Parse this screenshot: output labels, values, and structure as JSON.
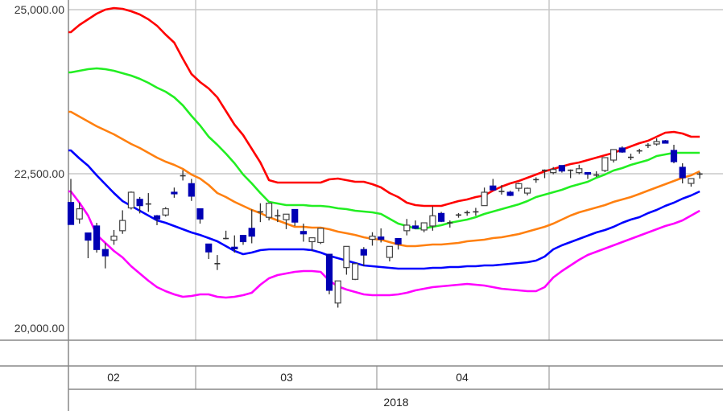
{
  "chart_data": {
    "type": "candlestick",
    "title": "",
    "xlabel": "",
    "ylabel": "",
    "ylim": [
      20000,
      25000
    ],
    "yticks": [
      "25,000.00",
      "22,500.00",
      "20,000.00"
    ],
    "ytick_values": [
      25000,
      22500,
      20000
    ],
    "grid": true,
    "year_label": "2018",
    "months": [
      {
        "label": "02",
        "first_index": 0
      },
      {
        "label": "03",
        "first_index": 15
      },
      {
        "label": "04",
        "first_index": 36
      },
      {
        "label": "",
        "first_index": 56
      }
    ],
    "colors": {
      "up_fill": "#ffffff",
      "down_fill": "#0000b4",
      "wick": "#333333",
      "band_colors": [
        "#ff0000",
        "#22ee22",
        "#ff8010",
        "#0000ff",
        "#ff00ff"
      ]
    },
    "candles": [
      [
        22062,
        22421,
        21727,
        21727
      ],
      [
        21811,
        22062,
        21740,
        21966
      ],
      [
        21597,
        21597,
        21213,
        21488
      ],
      [
        21704,
        21752,
        21298,
        21345
      ],
      [
        21345,
        21443,
        21058,
        21249
      ],
      [
        21488,
        21643,
        21417,
        21549
      ],
      [
        21632,
        21943,
        21584,
        21788
      ],
      [
        21979,
        22230,
        21955,
        22218
      ],
      [
        22110,
        22146,
        21895,
        22014
      ],
      [
        22039,
        22205,
        21919,
        22028
      ],
      [
        21859,
        21871,
        21716,
        21811
      ],
      [
        21871,
        21991,
        21847,
        21966
      ],
      [
        22218,
        22289,
        22134,
        22194
      ],
      [
        22469,
        22553,
        22397,
        22457
      ],
      [
        22349,
        22421,
        22086,
        22158
      ],
      [
        21966,
        21966,
        21740,
        21811
      ],
      [
        21429,
        21429,
        21201,
        21309
      ],
      [
        21130,
        21261,
        21033,
        21119
      ],
      [
        21513,
        21632,
        21501,
        21501
      ],
      [
        21381,
        21561,
        21298,
        21356
      ],
      [
        21561,
        21561,
        21417,
        21465
      ],
      [
        21668,
        21955,
        21440,
        21549
      ],
      [
        21919,
        22050,
        21763,
        21907
      ],
      [
        21836,
        22050,
        21788,
        22050
      ],
      [
        21859,
        21955,
        21763,
        21847
      ],
      [
        21800,
        21884,
        21656,
        21884
      ],
      [
        21955,
        21955,
        21704,
        21763
      ],
      [
        21620,
        21740,
        21465,
        21584
      ],
      [
        21465,
        21524,
        21321,
        21524
      ],
      [
        21453,
        21668,
        21429,
        21668
      ],
      [
        21273,
        21273,
        20663,
        20724
      ],
      [
        20530,
        20867,
        20460,
        20867
      ],
      [
        21070,
        21393,
        20962,
        21393
      ],
      [
        20891,
        21129,
        20879,
        21129
      ],
      [
        21345,
        21382,
        21093,
        21261
      ],
      [
        21501,
        21609,
        21404,
        21549
      ],
      [
        21536,
        21668,
        21453,
        21501
      ],
      [
        21225,
        21393,
        21165,
        21393
      ],
      [
        21513,
        21513,
        21345,
        21429
      ],
      [
        21632,
        21811,
        21561,
        21716
      ],
      [
        21704,
        21788,
        21656,
        21668
      ],
      [
        21643,
        21752,
        21609,
        21752
      ],
      [
        21704,
        22003,
        21632,
        21859
      ],
      [
        21895,
        21919,
        21763,
        21775
      ],
      [
        21752,
        21788,
        21680,
        21740
      ],
      [
        21871,
        21900,
        21830,
        21859
      ],
      [
        21907,
        21940,
        21860,
        21895
      ],
      [
        21919,
        21980,
        21860,
        21907
      ],
      [
        22014,
        22289,
        22014,
        22218
      ],
      [
        22313,
        22421,
        22253,
        22253
      ],
      [
        22230,
        22327,
        22182,
        22218
      ],
      [
        22218,
        22242,
        22158,
        22170
      ],
      [
        22278,
        22362,
        22230,
        22349
      ],
      [
        22205,
        22289,
        22170,
        22278
      ],
      [
        22410,
        22445,
        22362,
        22398
      ],
      [
        22553,
        22565,
        22433,
        22541
      ],
      [
        22517,
        22602,
        22492,
        22565
      ],
      [
        22625,
        22625,
        22517,
        22542
      ],
      [
        22553,
        22565,
        22433,
        22541
      ],
      [
        22517,
        22637,
        22492,
        22576
      ],
      [
        22517,
        22517,
        22421,
        22493
      ],
      [
        22480,
        22537,
        22451,
        22470
      ],
      [
        22549,
        22745,
        22524,
        22745
      ],
      [
        22708,
        22868,
        22671,
        22868
      ],
      [
        22892,
        22917,
        22819,
        22831
      ],
      [
        22750,
        22806,
        22708,
        22740
      ],
      [
        22848,
        22880,
        22806,
        22838
      ],
      [
        22934,
        22966,
        22892,
        22924
      ],
      [
        22953,
        23039,
        22929,
        22990
      ],
      [
        23002,
        23015,
        22960,
        22966
      ],
      [
        22855,
        22941,
        22659,
        22684
      ],
      [
        22598,
        22659,
        22353,
        22439
      ],
      [
        22353,
        22426,
        22304,
        22426
      ],
      [
        22495,
        22524,
        22426,
        22485
      ]
    ],
    "candle_fields": [
      "open",
      "high",
      "low",
      "close"
    ],
    "series": [
      {
        "values": [
          24657,
          24767,
          24853,
          24939,
          25000,
          25024,
          25012,
          24975,
          24926,
          24853,
          24755,
          24620,
          24498,
          24252,
          24020,
          23897,
          23799,
          23664,
          23456,
          23247,
          23088,
          22880,
          22671,
          22402,
          22365,
          22365,
          22365,
          22365,
          22365,
          22365,
          22414,
          22426,
          22402,
          22377,
          22377,
          22341,
          22292,
          22206,
          22145,
          22059,
          22022,
          22010,
          22010,
          22010,
          22047,
          22083,
          22108,
          22145,
          22169,
          22243,
          22304,
          22353,
          22390,
          22439,
          22488,
          22537,
          22574,
          22610,
          22647,
          22671,
          22708,
          22745,
          22782,
          22819,
          22868,
          22917,
          22966,
          23002,
          23064,
          23125,
          23137,
          23113,
          23064,
          23064
        ]
      },
      {
        "values": [
          24044,
          24069,
          24093,
          24105,
          24093,
          24069,
          24032,
          23995,
          23946,
          23885,
          23811,
          23750,
          23664,
          23542,
          23382,
          23235,
          23064,
          22941,
          22806,
          22659,
          22488,
          22353,
          22206,
          22071,
          22047,
          22022,
          22022,
          22022,
          22010,
          22010,
          21998,
          21973,
          21961,
          21936,
          21924,
          21912,
          21887,
          21814,
          21740,
          21704,
          21667,
          21667,
          21691,
          21716,
          21752,
          21777,
          21801,
          21838,
          21887,
          21924,
          21961,
          21998,
          22034,
          22083,
          22145,
          22181,
          22218,
          22255,
          22304,
          22341,
          22377,
          22439,
          22488,
          22549,
          22586,
          22635,
          22671,
          22708,
          22770,
          22794,
          22819,
          22819,
          22819,
          22819
        ]
      },
      {
        "values": [
          23444,
          23370,
          23297,
          23223,
          23162,
          23100,
          23027,
          22953,
          22892,
          22819,
          22745,
          22684,
          22635,
          22573,
          22488,
          22426,
          22328,
          22206,
          22145,
          22071,
          22010,
          21948,
          21899,
          21838,
          21789,
          21740,
          21691,
          21691,
          21679,
          21679,
          21654,
          21618,
          21593,
          21568,
          21532,
          21507,
          21495,
          21458,
          21421,
          21397,
          21397,
          21409,
          21421,
          21421,
          21434,
          21446,
          21470,
          21483,
          21495,
          21519,
          21532,
          21556,
          21581,
          21618,
          21654,
          21691,
          21740,
          21801,
          21863,
          21912,
          21948,
          21985,
          22022,
          22071,
          22108,
          22145,
          22193,
          22243,
          22292,
          22341,
          22390,
          22439,
          22475,
          22537
        ]
      },
      {
        "values": [
          22855,
          22733,
          22622,
          22475,
          22341,
          22206,
          22083,
          22010,
          21936,
          21863,
          21789,
          21752,
          21703,
          21654,
          21605,
          21568,
          21519,
          21470,
          21397,
          21323,
          21274,
          21299,
          21336,
          21348,
          21348,
          21348,
          21348,
          21348,
          21336,
          21299,
          21250,
          21213,
          21176,
          21140,
          21103,
          21091,
          21078,
          21066,
          21054,
          21054,
          21054,
          21054,
          21066,
          21066,
          21078,
          21078,
          21091,
          21091,
          21103,
          21103,
          21115,
          21127,
          21140,
          21152,
          21176,
          21238,
          21348,
          21409,
          21458,
          21507,
          21556,
          21605,
          21642,
          21691,
          21752,
          21801,
          21838,
          21899,
          21948,
          22010,
          22059,
          22120,
          22169,
          22230
        ]
      },
      {
        "values": [
          22230,
          22059,
          21863,
          21568,
          21446,
          21323,
          21225,
          21091,
          20980,
          20870,
          20772,
          20711,
          20662,
          20625,
          20637,
          20662,
          20662,
          20625,
          20613,
          20625,
          20649,
          20686,
          20809,
          20907,
          20956,
          20980,
          21005,
          21017,
          21017,
          21005,
          20870,
          20784,
          20735,
          20698,
          20662,
          20649,
          20649,
          20649,
          20662,
          20686,
          20723,
          20747,
          20772,
          20784,
          20796,
          20809,
          20821,
          20809,
          20796,
          20772,
          20747,
          20735,
          20723,
          20711,
          20711,
          20772,
          20919,
          21017,
          21103,
          21189,
          21262,
          21311,
          21360,
          21409,
          21458,
          21507,
          21556,
          21605,
          21654,
          21703,
          21740,
          21789,
          21863,
          21936
        ]
      }
    ]
  }
}
